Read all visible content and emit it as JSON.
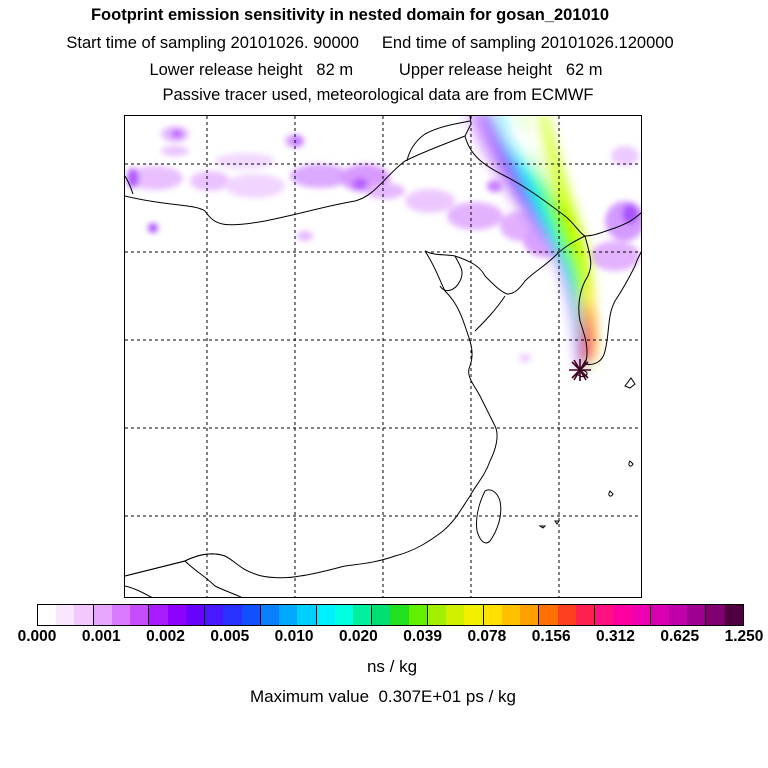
{
  "header": {
    "title": "Footprint emission sensitivity in nested domain for gosan_201010",
    "sampling_line": "Start time of sampling 20101026. 90000     End time of sampling 20101026.120000",
    "release_line": "Lower release height   82 m          Upper release height   62 m",
    "tracer_line": "Passive tracer used, meteorological data are from ECMWF"
  },
  "map": {
    "grid": "dashed",
    "station_marker_icon": "star-icon",
    "plume_colors": [
      "#d8a0ff",
      "#7a3cff",
      "#00ccff",
      "#00ffd0",
      "#80ff00",
      "#ffe600",
      "#ff8000",
      "#ff2020"
    ]
  },
  "colorbar": {
    "colors": [
      "#ffffff",
      "#fbe6ff",
      "#f3c8ff",
      "#e9a6ff",
      "#d97aff",
      "#c84cff",
      "#a81cff",
      "#8e00ff",
      "#6a00ff",
      "#4a18ff",
      "#2a30ff",
      "#1050ff",
      "#0a80ff",
      "#00a8ff",
      "#00d0ff",
      "#00f0ff",
      "#00ffe0",
      "#00f0a0",
      "#00e070",
      "#20e020",
      "#60f000",
      "#a0f000",
      "#d0f000",
      "#f0f000",
      "#ffe000",
      "#ffc000",
      "#ffa000",
      "#ff7000",
      "#ff4020",
      "#ff2050",
      "#ff1080",
      "#ff00a0",
      "#f000b0",
      "#d800b0",
      "#c000a8",
      "#a00090",
      "#800070",
      "#500040"
    ],
    "tick_labels": [
      "0.000",
      "0.001",
      "0.002",
      "0.005",
      "0.010",
      "0.020",
      "0.039",
      "0.078",
      "0.156",
      "0.312",
      "0.625",
      "1.250"
    ],
    "unit": "ns / kg"
  },
  "footer": {
    "max_value_line": "Maximum value  0.307E+01 ps / kg"
  }
}
